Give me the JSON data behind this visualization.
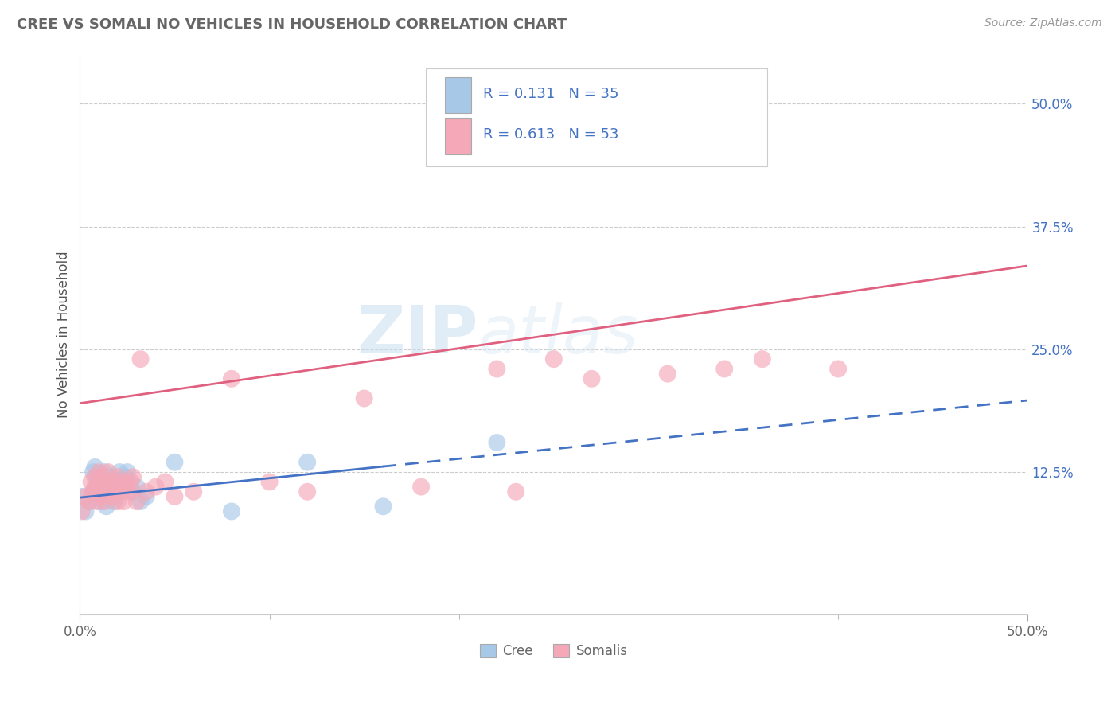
{
  "title": "CREE VS SOMALI NO VEHICLES IN HOUSEHOLD CORRELATION CHART",
  "source": "Source: ZipAtlas.com",
  "ylabel_label": "No Vehicles in Household",
  "legend_labels": [
    "Cree",
    "Somalis"
  ],
  "cree_color": "#a8c8e8",
  "somali_color": "#f4a8b8",
  "cree_line_color": "#4472c4",
  "somali_line_color": "#e06080",
  "watermark_zip": "ZIP",
  "watermark_atlas": "atlas",
  "R_cree": 0.131,
  "N_cree": 35,
  "R_somali": 0.613,
  "N_somali": 53,
  "xlim": [
    0.0,
    0.5
  ],
  "ylim": [
    -0.02,
    0.55
  ],
  "cree_line_x0": 0.0,
  "cree_line_y0": 0.099,
  "cree_line_x1": 0.5,
  "cree_line_y1": 0.198,
  "somali_line_x0": 0.0,
  "somali_line_y0": 0.195,
  "somali_line_x1": 0.5,
  "somali_line_y1": 0.335,
  "cree_x": [
    0.001,
    0.003,
    0.005,
    0.007,
    0.007,
    0.008,
    0.009,
    0.01,
    0.01,
    0.011,
    0.012,
    0.012,
    0.013,
    0.014,
    0.014,
    0.015,
    0.016,
    0.017,
    0.018,
    0.019,
    0.02,
    0.021,
    0.022,
    0.023,
    0.024,
    0.025,
    0.028,
    0.03,
    0.032,
    0.035,
    0.05,
    0.08,
    0.12,
    0.16,
    0.22
  ],
  "cree_y": [
    0.1,
    0.085,
    0.095,
    0.105,
    0.125,
    0.13,
    0.12,
    0.11,
    0.115,
    0.095,
    0.105,
    0.115,
    0.125,
    0.09,
    0.105,
    0.11,
    0.12,
    0.115,
    0.095,
    0.105,
    0.115,
    0.125,
    0.11,
    0.115,
    0.12,
    0.125,
    0.105,
    0.11,
    0.095,
    0.1,
    0.135,
    0.085,
    0.135,
    0.09,
    0.155
  ],
  "somali_x": [
    0.001,
    0.003,
    0.005,
    0.006,
    0.007,
    0.008,
    0.008,
    0.009,
    0.01,
    0.01,
    0.011,
    0.012,
    0.012,
    0.013,
    0.013,
    0.014,
    0.015,
    0.015,
    0.016,
    0.017,
    0.018,
    0.019,
    0.02,
    0.02,
    0.021,
    0.022,
    0.023,
    0.024,
    0.025,
    0.026,
    0.027,
    0.028,
    0.03,
    0.032,
    0.035,
    0.04,
    0.045,
    0.05,
    0.06,
    0.08,
    0.1,
    0.12,
    0.15,
    0.18,
    0.2,
    0.22,
    0.23,
    0.25,
    0.27,
    0.31,
    0.34,
    0.36,
    0.4
  ],
  "somali_y": [
    0.085,
    0.1,
    0.095,
    0.115,
    0.105,
    0.12,
    0.11,
    0.095,
    0.115,
    0.125,
    0.11,
    0.1,
    0.12,
    0.095,
    0.11,
    0.115,
    0.105,
    0.125,
    0.115,
    0.1,
    0.105,
    0.115,
    0.12,
    0.095,
    0.11,
    0.105,
    0.095,
    0.115,
    0.11,
    0.105,
    0.115,
    0.12,
    0.095,
    0.24,
    0.105,
    0.11,
    0.115,
    0.1,
    0.105,
    0.22,
    0.115,
    0.105,
    0.2,
    0.11,
    0.45,
    0.23,
    0.105,
    0.24,
    0.22,
    0.225,
    0.23,
    0.24,
    0.23
  ]
}
